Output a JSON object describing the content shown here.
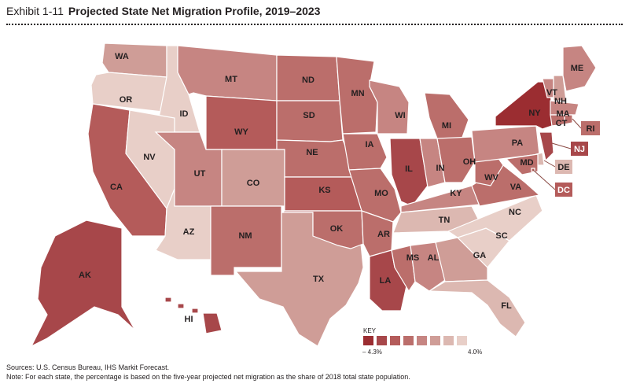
{
  "header": {
    "exhibit_label": "Exhibit 1-11",
    "title": "Projected State Net Migration Profile, 2019–2023"
  },
  "palette": [
    "#9b2d31",
    "#a7474a",
    "#b45b5a",
    "#bb6e6b",
    "#c68582",
    "#cf9d97",
    "#dcb8b1",
    "#e8cfc8"
  ],
  "states": [
    {
      "abbr": "WA",
      "bucket": 5
    },
    {
      "abbr": "OR",
      "bucket": 7
    },
    {
      "abbr": "CA",
      "bucket": 2
    },
    {
      "abbr": "ID",
      "bucket": 7
    },
    {
      "abbr": "NV",
      "bucket": 7
    },
    {
      "abbr": "AZ",
      "bucket": 7
    },
    {
      "abbr": "MT",
      "bucket": 4
    },
    {
      "abbr": "WY",
      "bucket": 2
    },
    {
      "abbr": "UT",
      "bucket": 4
    },
    {
      "abbr": "CO",
      "bucket": 5
    },
    {
      "abbr": "NM",
      "bucket": 3
    },
    {
      "abbr": "TX",
      "bucket": 5
    },
    {
      "abbr": "ND",
      "bucket": 3
    },
    {
      "abbr": "SD",
      "bucket": 3
    },
    {
      "abbr": "NE",
      "bucket": 3
    },
    {
      "abbr": "KS",
      "bucket": 2
    },
    {
      "abbr": "OK",
      "bucket": 3
    },
    {
      "abbr": "MN",
      "bucket": 3
    },
    {
      "abbr": "IA",
      "bucket": 3
    },
    {
      "abbr": "MO",
      "bucket": 3
    },
    {
      "abbr": "AR",
      "bucket": 3
    },
    {
      "abbr": "LA",
      "bucket": 1
    },
    {
      "abbr": "WI",
      "bucket": 4
    },
    {
      "abbr": "IL",
      "bucket": 1
    },
    {
      "abbr": "MI",
      "bucket": 3
    },
    {
      "abbr": "IN",
      "bucket": 4
    },
    {
      "abbr": "OH",
      "bucket": 3
    },
    {
      "abbr": "KY",
      "bucket": 4
    },
    {
      "abbr": "TN",
      "bucket": 6
    },
    {
      "abbr": "MS",
      "bucket": 3
    },
    {
      "abbr": "AL",
      "bucket": 4
    },
    {
      "abbr": "GA",
      "bucket": 5
    },
    {
      "abbr": "FL",
      "bucket": 6
    },
    {
      "abbr": "SC",
      "bucket": 7
    },
    {
      "abbr": "NC",
      "bucket": 7
    },
    {
      "abbr": "VA",
      "bucket": 3
    },
    {
      "abbr": "WV",
      "bucket": 3
    },
    {
      "abbr": "PA",
      "bucket": 4
    },
    {
      "abbr": "NY",
      "bucket": 0
    },
    {
      "abbr": "VT",
      "bucket": 4
    },
    {
      "abbr": "NH",
      "bucket": 5
    },
    {
      "abbr": "ME",
      "bucket": 4
    },
    {
      "abbr": "MA",
      "bucket": 4
    },
    {
      "abbr": "CT",
      "bucket": 3
    },
    {
      "abbr": "RI",
      "bucket": 3
    },
    {
      "abbr": "NJ",
      "bucket": 1
    },
    {
      "abbr": "DE",
      "bucket": 6
    },
    {
      "abbr": "MD",
      "bucket": 3
    },
    {
      "abbr": "DC",
      "bucket": 2
    },
    {
      "abbr": "AK",
      "bucket": 1
    },
    {
      "abbr": "HI",
      "bucket": 1
    }
  ],
  "key": {
    "title": "KEY",
    "min_label": "– 4.3%",
    "max_label": "4.0%",
    "steps": 8
  },
  "footer": {
    "sources": "Sources: U.S. Census Bureau, IHS Markit Forecast.",
    "note": "Note: For each state, the percentage is based on the five-year projected net migration as the share of 2018 total state population."
  }
}
